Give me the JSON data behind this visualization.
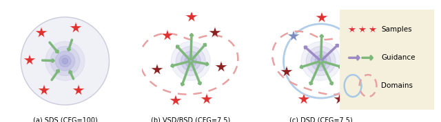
{
  "fig_width": 6.4,
  "fig_height": 1.78,
  "bg_color": "#ffffff",
  "subtitle_a": "(a) SDS (CFG=100)",
  "subtitle_b": "(b) VSD/BSD (CFG=7.5)",
  "subtitle_c": "(c) DSD (CFG=7.5)",
  "legend_title_samples": "Samples",
  "legend_title_guidance": "Guidance",
  "legend_title_domains": "Domains",
  "red_star_color": "#e03030",
  "dark_red_star_color": "#8b2020",
  "blue_star_color": "#7b8cbc",
  "green_arrow_color": "#7db87a",
  "purple_arrow_color": "#9b8ac4",
  "pink_dash_color": "#e8a0a0",
  "blue_circle_color": "#a8c8e8",
  "legend_bg_color": "#f5f0dc",
  "legend_border_color": "#c8b878"
}
